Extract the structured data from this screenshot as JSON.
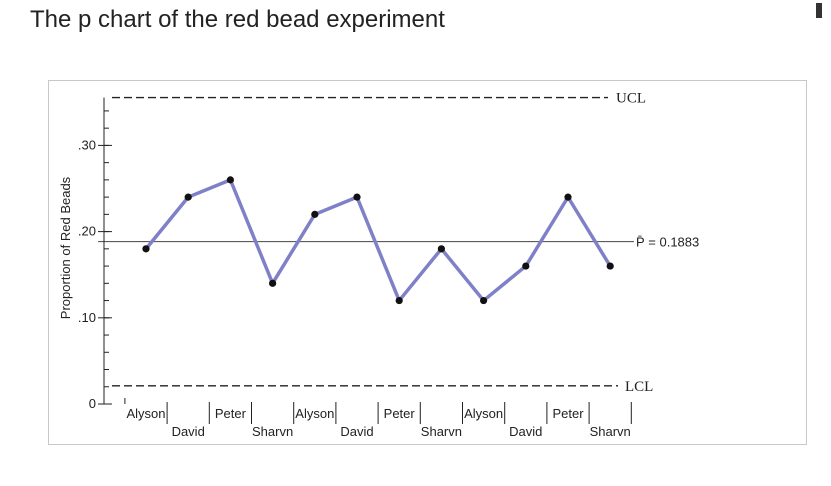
{
  "page": {
    "title": "The p chart of the red bead experiment"
  },
  "chart_data": {
    "type": "line",
    "title": "",
    "ylabel": "Proportion of Red Beads",
    "xlabel": "",
    "ylim": [
      0,
      0.34
    ],
    "yticks": [
      {
        "value": 0,
        "label": "0"
      },
      {
        "value": 0.1,
        "label": ".10"
      },
      {
        "value": 0.2,
        "label": ".20"
      },
      {
        "value": 0.3,
        "label": ".30"
      }
    ],
    "categories": [
      "Alyson",
      "David",
      "Peter",
      "Sharvn",
      "Alyson",
      "David",
      "Peter",
      "Sharvn",
      "Alyson",
      "David",
      "Peter",
      "Sharvn"
    ],
    "values": [
      0.18,
      0.24,
      0.26,
      0.14,
      0.22,
      0.24,
      0.12,
      0.18,
      0.12,
      0.16,
      0.24,
      0.16
    ],
    "center_line": {
      "value": 0.1883,
      "label": "P̄ = 0.1883"
    },
    "ucl": {
      "value": 0.3555,
      "label": "UCL"
    },
    "lcl": {
      "value": 0.0211,
      "label": "LCL"
    },
    "line_color": "#8080c8",
    "point_color": "#111111",
    "grid": false
  }
}
